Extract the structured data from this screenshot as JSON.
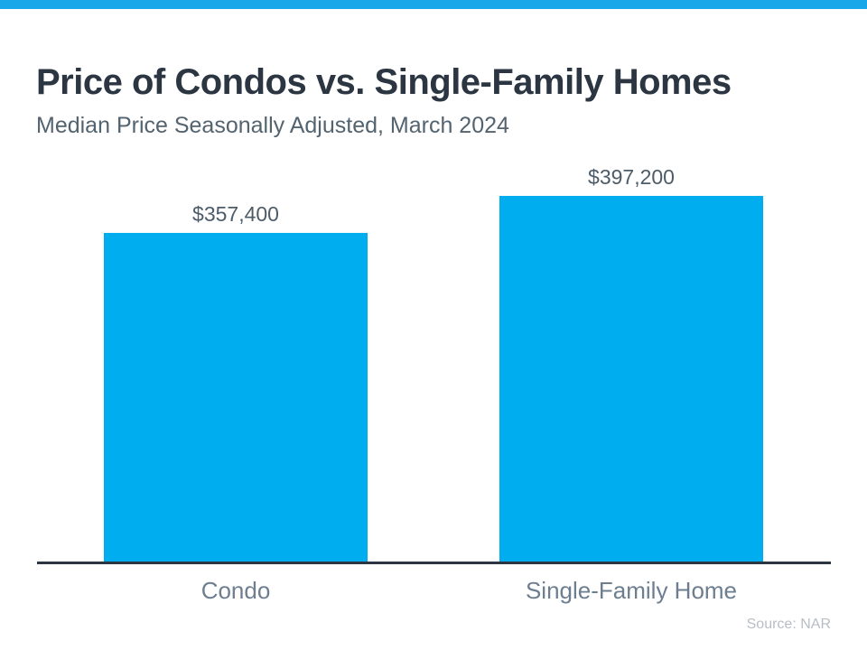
{
  "header": {
    "title": "Price of Condos vs. Single-Family Homes",
    "subtitle": "Median Price Seasonally Adjusted, March 2024"
  },
  "footer": {
    "source": "Source: NAR"
  },
  "colors": {
    "accent_bar": "#18a8ea",
    "bar_fill": "#00aeef",
    "axis_line": "#2b3642",
    "title_text": "#2b3642",
    "subtitle_text": "#53636f",
    "category_text": "#6d7e91",
    "source_text": "#b7bec4"
  },
  "chart_data": {
    "type": "bar",
    "title": "Price of Condos vs. Single-Family Homes",
    "subtitle": "Median Price Seasonally Adjusted, March 2024",
    "categories": [
      "Condo",
      "Single-Family Home"
    ],
    "values": [
      357400,
      397200
    ],
    "value_labels": [
      "$357,400",
      "$397,200"
    ],
    "xlabel": "",
    "ylabel": "",
    "ylim": [
      0,
      420000
    ],
    "grid": false,
    "legend": false,
    "source": "Source: NAR"
  }
}
